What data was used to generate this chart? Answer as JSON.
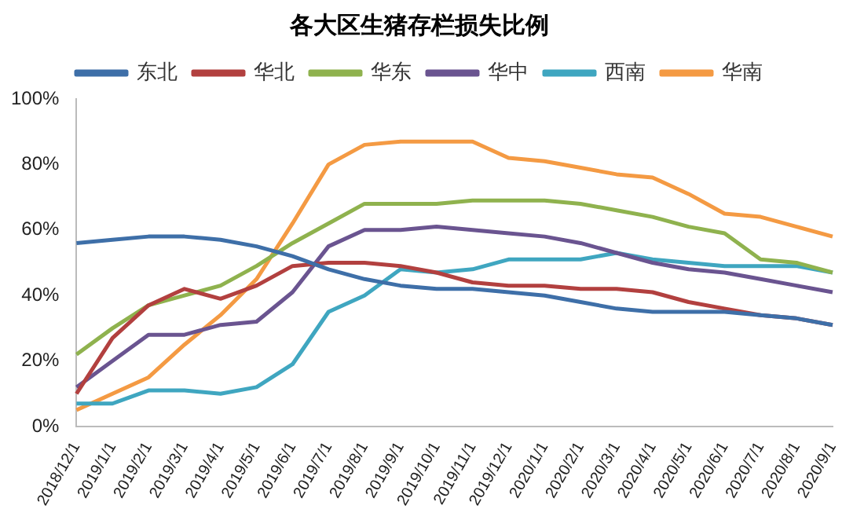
{
  "chart_data": {
    "type": "line",
    "title": "各大区生猪存栏损失比例",
    "categories": [
      "2018/12/1",
      "2019/1/1",
      "2019/2/1",
      "2019/3/1",
      "2019/4/1",
      "2019/5/1",
      "2019/6/1",
      "2019/7/1",
      "2019/8/1",
      "2019/9/1",
      "2019/10/1",
      "2019/11/1",
      "2019/12/1",
      "2020/1/1",
      "2020/2/1",
      "2020/3/1",
      "2020/4/1",
      "2020/5/1",
      "2020/6/1",
      "2020/7/1",
      "2020/8/1",
      "2020/9/1"
    ],
    "series": [
      {
        "name": "东北",
        "color": "#3e6fa8",
        "values": [
          56,
          57,
          58,
          58,
          57,
          55,
          52,
          48,
          45,
          43,
          42,
          42,
          41,
          40,
          38,
          36,
          35,
          35,
          35,
          34,
          33,
          31
        ]
      },
      {
        "name": "华北",
        "color": "#b2403f",
        "values": [
          10,
          27,
          37,
          42,
          39,
          43,
          49,
          50,
          50,
          49,
          47,
          44,
          43,
          43,
          42,
          42,
          41,
          38,
          36,
          34,
          33,
          31
        ]
      },
      {
        "name": "华东",
        "color": "#8fb24e",
        "values": [
          22,
          30,
          37,
          40,
          43,
          49,
          56,
          62,
          68,
          68,
          68,
          69,
          69,
          69,
          68,
          66,
          64,
          61,
          59,
          51,
          50,
          47
        ]
      },
      {
        "name": "华中",
        "color": "#6a5490",
        "values": [
          12,
          20,
          28,
          28,
          31,
          32,
          41,
          55,
          60,
          60,
          61,
          60,
          59,
          58,
          56,
          53,
          50,
          48,
          47,
          45,
          43,
          41
        ]
      },
      {
        "name": "西南",
        "color": "#3fa6c0",
        "values": [
          7,
          7,
          11,
          11,
          10,
          12,
          19,
          35,
          40,
          48,
          47,
          48,
          51,
          51,
          51,
          53,
          51,
          50,
          49,
          49,
          49,
          47
        ]
      },
      {
        "name": "华南",
        "color": "#f49a43",
        "values": [
          5,
          10,
          15,
          25,
          34,
          45,
          62,
          80,
          86,
          87,
          87,
          87,
          82,
          81,
          79,
          77,
          76,
          71,
          65,
          64,
          61,
          58
        ]
      }
    ],
    "ylim": [
      0,
      100
    ],
    "yticks": [
      {
        "value": 0,
        "label": "0%"
      },
      {
        "value": 20,
        "label": "20%"
      },
      {
        "value": 40,
        "label": "40%"
      },
      {
        "value": 60,
        "label": "60%"
      },
      {
        "value": 80,
        "label": "80%"
      },
      {
        "value": 100,
        "label": "100%"
      }
    ],
    "grid": false,
    "legend": "top",
    "marker": "none"
  }
}
